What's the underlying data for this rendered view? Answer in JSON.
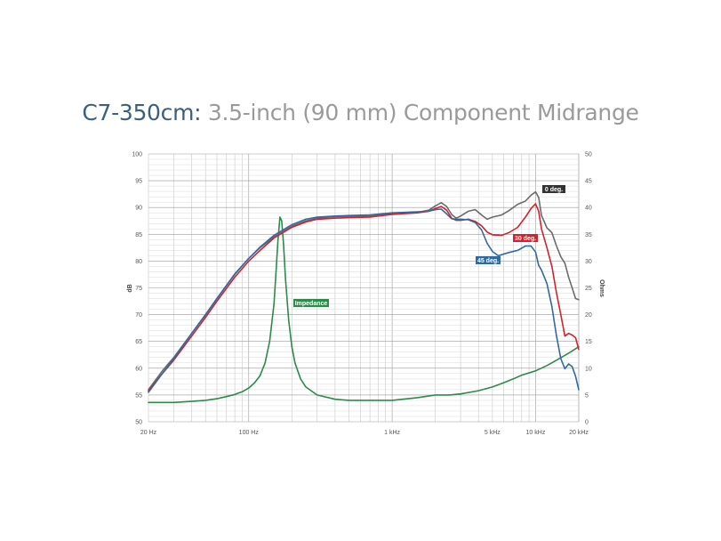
{
  "title": {
    "model": "C7-350cm:",
    "subtitle": " 3.5-inch (90 mm) Component Midrange"
  },
  "chart_data": {
    "type": "line",
    "title": "C7-350cm: 3.5-inch (90 mm) Component Midrange",
    "xlabel": "",
    "ylabel": "dB",
    "y2label": "Ohms",
    "x_scale": "log",
    "xlim": [
      20,
      20000
    ],
    "ylim": [
      50,
      100
    ],
    "y2lim": [
      0,
      50
    ],
    "grid": true,
    "x_ticks": [
      {
        "value": 20,
        "label": "20 Hz"
      },
      {
        "value": 100,
        "label": "100 Hz"
      },
      {
        "value": 1000,
        "label": "1 kHz"
      },
      {
        "value": 5000,
        "label": "5 kHz"
      },
      {
        "value": 10000,
        "label": "10 kHz"
      },
      {
        "value": 20000,
        "label": "20 kHz"
      }
    ],
    "y_ticks": [
      50,
      55,
      60,
      65,
      70,
      75,
      80,
      85,
      90,
      95,
      100
    ],
    "y2_ticks": [
      0,
      5,
      10,
      15,
      20,
      25,
      30,
      35,
      40,
      45,
      50
    ],
    "series": [
      {
        "name": "0 deg.",
        "color": "#6b6b6b",
        "axis": "left",
        "points": [
          [
            20,
            56
          ],
          [
            25,
            59.5
          ],
          [
            30,
            62
          ],
          [
            40,
            66.5
          ],
          [
            50,
            70
          ],
          [
            60,
            73
          ],
          [
            80,
            77.5
          ],
          [
            100,
            80.5
          ],
          [
            120,
            82.5
          ],
          [
            150,
            84.5
          ],
          [
            200,
            86.5
          ],
          [
            250,
            87.5
          ],
          [
            300,
            88
          ],
          [
            400,
            88.3
          ],
          [
            500,
            88.3
          ],
          [
            700,
            88.4
          ],
          [
            1000,
            88.8
          ],
          [
            1500,
            89.1
          ],
          [
            1800,
            89.5
          ],
          [
            2000,
            90.3
          ],
          [
            2200,
            90.9
          ],
          [
            2400,
            90.2
          ],
          [
            2600,
            88.7
          ],
          [
            2800,
            88
          ],
          [
            3000,
            88.4
          ],
          [
            3400,
            89.3
          ],
          [
            3800,
            89.6
          ],
          [
            4200,
            88.6
          ],
          [
            4600,
            87.8
          ],
          [
            5000,
            88.2
          ],
          [
            5800,
            88.6
          ],
          [
            6500,
            89.4
          ],
          [
            7500,
            90.6
          ],
          [
            8500,
            91.2
          ],
          [
            9300,
            92.3
          ],
          [
            10000,
            92.9
          ],
          [
            10500,
            91.9
          ],
          [
            11000,
            88.5
          ],
          [
            12000,
            86.2
          ],
          [
            13000,
            85.3
          ],
          [
            14000,
            82.8
          ],
          [
            15000,
            80.8
          ],
          [
            16000,
            79.6
          ],
          [
            17000,
            77
          ],
          [
            18000,
            75
          ],
          [
            19000,
            73
          ],
          [
            20000,
            72.8
          ]
        ]
      },
      {
        "name": "30 deg.",
        "color": "#d2222d",
        "axis": "left",
        "points": [
          [
            20,
            55.8
          ],
          [
            25,
            59
          ],
          [
            30,
            61.5
          ],
          [
            40,
            66
          ],
          [
            50,
            69.5
          ],
          [
            60,
            72.5
          ],
          [
            80,
            77
          ],
          [
            100,
            80
          ],
          [
            120,
            82
          ],
          [
            150,
            84.3
          ],
          [
            200,
            86.3
          ],
          [
            250,
            87.3
          ],
          [
            300,
            87.8
          ],
          [
            400,
            88
          ],
          [
            500,
            88.1
          ],
          [
            700,
            88.2
          ],
          [
            1000,
            88.7
          ],
          [
            1500,
            89
          ],
          [
            1800,
            89.3
          ],
          [
            2000,
            89.8
          ],
          [
            2200,
            90.2
          ],
          [
            2400,
            89.5
          ],
          [
            2600,
            88
          ],
          [
            2800,
            87.6
          ],
          [
            3000,
            87.6
          ],
          [
            3400,
            87.8
          ],
          [
            3800,
            87.4
          ],
          [
            4200,
            86.6
          ],
          [
            4600,
            85.4
          ],
          [
            5000,
            84.9
          ],
          [
            5800,
            84.8
          ],
          [
            6500,
            85.3
          ],
          [
            7500,
            86.3
          ],
          [
            8500,
            88.2
          ],
          [
            9300,
            89.8
          ],
          [
            10000,
            90.7
          ],
          [
            10500,
            89.3
          ],
          [
            11000,
            86
          ],
          [
            12000,
            82.5
          ],
          [
            13000,
            79
          ],
          [
            14000,
            74
          ],
          [
            15000,
            70
          ],
          [
            16000,
            66
          ],
          [
            17000,
            66.5
          ],
          [
            18000,
            66.2
          ],
          [
            19000,
            65.7
          ],
          [
            20000,
            63.5
          ]
        ]
      },
      {
        "name": "45 deg.",
        "color": "#2f6aa3",
        "axis": "left",
        "points": [
          [
            20,
            55.5
          ],
          [
            25,
            59
          ],
          [
            30,
            61.8
          ],
          [
            40,
            66.5
          ],
          [
            50,
            70
          ],
          [
            60,
            73
          ],
          [
            80,
            77.6
          ],
          [
            100,
            80.5
          ],
          [
            120,
            82.6
          ],
          [
            150,
            84.8
          ],
          [
            200,
            86.8
          ],
          [
            250,
            87.8
          ],
          [
            300,
            88.2
          ],
          [
            400,
            88.4
          ],
          [
            500,
            88.5
          ],
          [
            700,
            88.6
          ],
          [
            1000,
            89
          ],
          [
            1500,
            89.2
          ],
          [
            1800,
            89.3
          ],
          [
            2000,
            89.6
          ],
          [
            2200,
            89.7
          ],
          [
            2400,
            88.8
          ],
          [
            2600,
            87.9
          ],
          [
            2800,
            87.8
          ],
          [
            3000,
            87.8
          ],
          [
            3400,
            87.7
          ],
          [
            3800,
            87.2
          ],
          [
            4200,
            85.8
          ],
          [
            4600,
            83.3
          ],
          [
            5000,
            81.8
          ],
          [
            5500,
            81
          ],
          [
            6500,
            81.6
          ],
          [
            7500,
            82
          ],
          [
            8500,
            82.8
          ],
          [
            9300,
            82.8
          ],
          [
            10000,
            81.7
          ],
          [
            10500,
            79.2
          ],
          [
            11000,
            78.3
          ],
          [
            12000,
            75.8
          ],
          [
            13000,
            71.5
          ],
          [
            14000,
            66
          ],
          [
            15000,
            61.8
          ],
          [
            16000,
            59.9
          ],
          [
            17000,
            60.8
          ],
          [
            18000,
            60.3
          ],
          [
            19000,
            58.5
          ],
          [
            20000,
            56
          ]
        ]
      },
      {
        "name": "Impedance",
        "color": "#2d8a4a",
        "axis": "right",
        "points": [
          [
            20,
            3.6
          ],
          [
            30,
            3.6
          ],
          [
            40,
            3.8
          ],
          [
            50,
            4
          ],
          [
            60,
            4.3
          ],
          [
            70,
            4.7
          ],
          [
            80,
            5.1
          ],
          [
            90,
            5.6
          ],
          [
            100,
            6.3
          ],
          [
            110,
            7.3
          ],
          [
            120,
            8.6
          ],
          [
            130,
            11
          ],
          [
            140,
            15
          ],
          [
            150,
            22
          ],
          [
            155,
            28
          ],
          [
            160,
            34
          ],
          [
            165,
            38.2
          ],
          [
            170,
            37.5
          ],
          [
            175,
            33
          ],
          [
            180,
            27
          ],
          [
            190,
            19
          ],
          [
            200,
            14
          ],
          [
            210,
            11
          ],
          [
            230,
            8
          ],
          [
            250,
            6.5
          ],
          [
            300,
            5
          ],
          [
            400,
            4.2
          ],
          [
            500,
            4
          ],
          [
            700,
            4
          ],
          [
            1000,
            4
          ],
          [
            1500,
            4.5
          ],
          [
            2000,
            5
          ],
          [
            2500,
            5
          ],
          [
            3000,
            5.2
          ],
          [
            4000,
            5.8
          ],
          [
            5000,
            6.5
          ],
          [
            6000,
            7.3
          ],
          [
            7000,
            8
          ],
          [
            8000,
            8.7
          ],
          [
            10000,
            9.5
          ],
          [
            12000,
            10.5
          ],
          [
            14000,
            11.5
          ],
          [
            17000,
            12.8
          ],
          [
            20000,
            14
          ]
        ]
      }
    ],
    "annotations": [
      {
        "text": "0 deg.",
        "series": "0 deg.",
        "bg": "#333333"
      },
      {
        "text": "30 deg.",
        "series": "30 deg.",
        "bg": "#d2222d"
      },
      {
        "text": "45 deg.",
        "series": "45 deg.",
        "bg": "#2f6aa3"
      },
      {
        "text": "Impedance",
        "series": "Impedance",
        "bg": "#2d8a4a"
      }
    ]
  }
}
